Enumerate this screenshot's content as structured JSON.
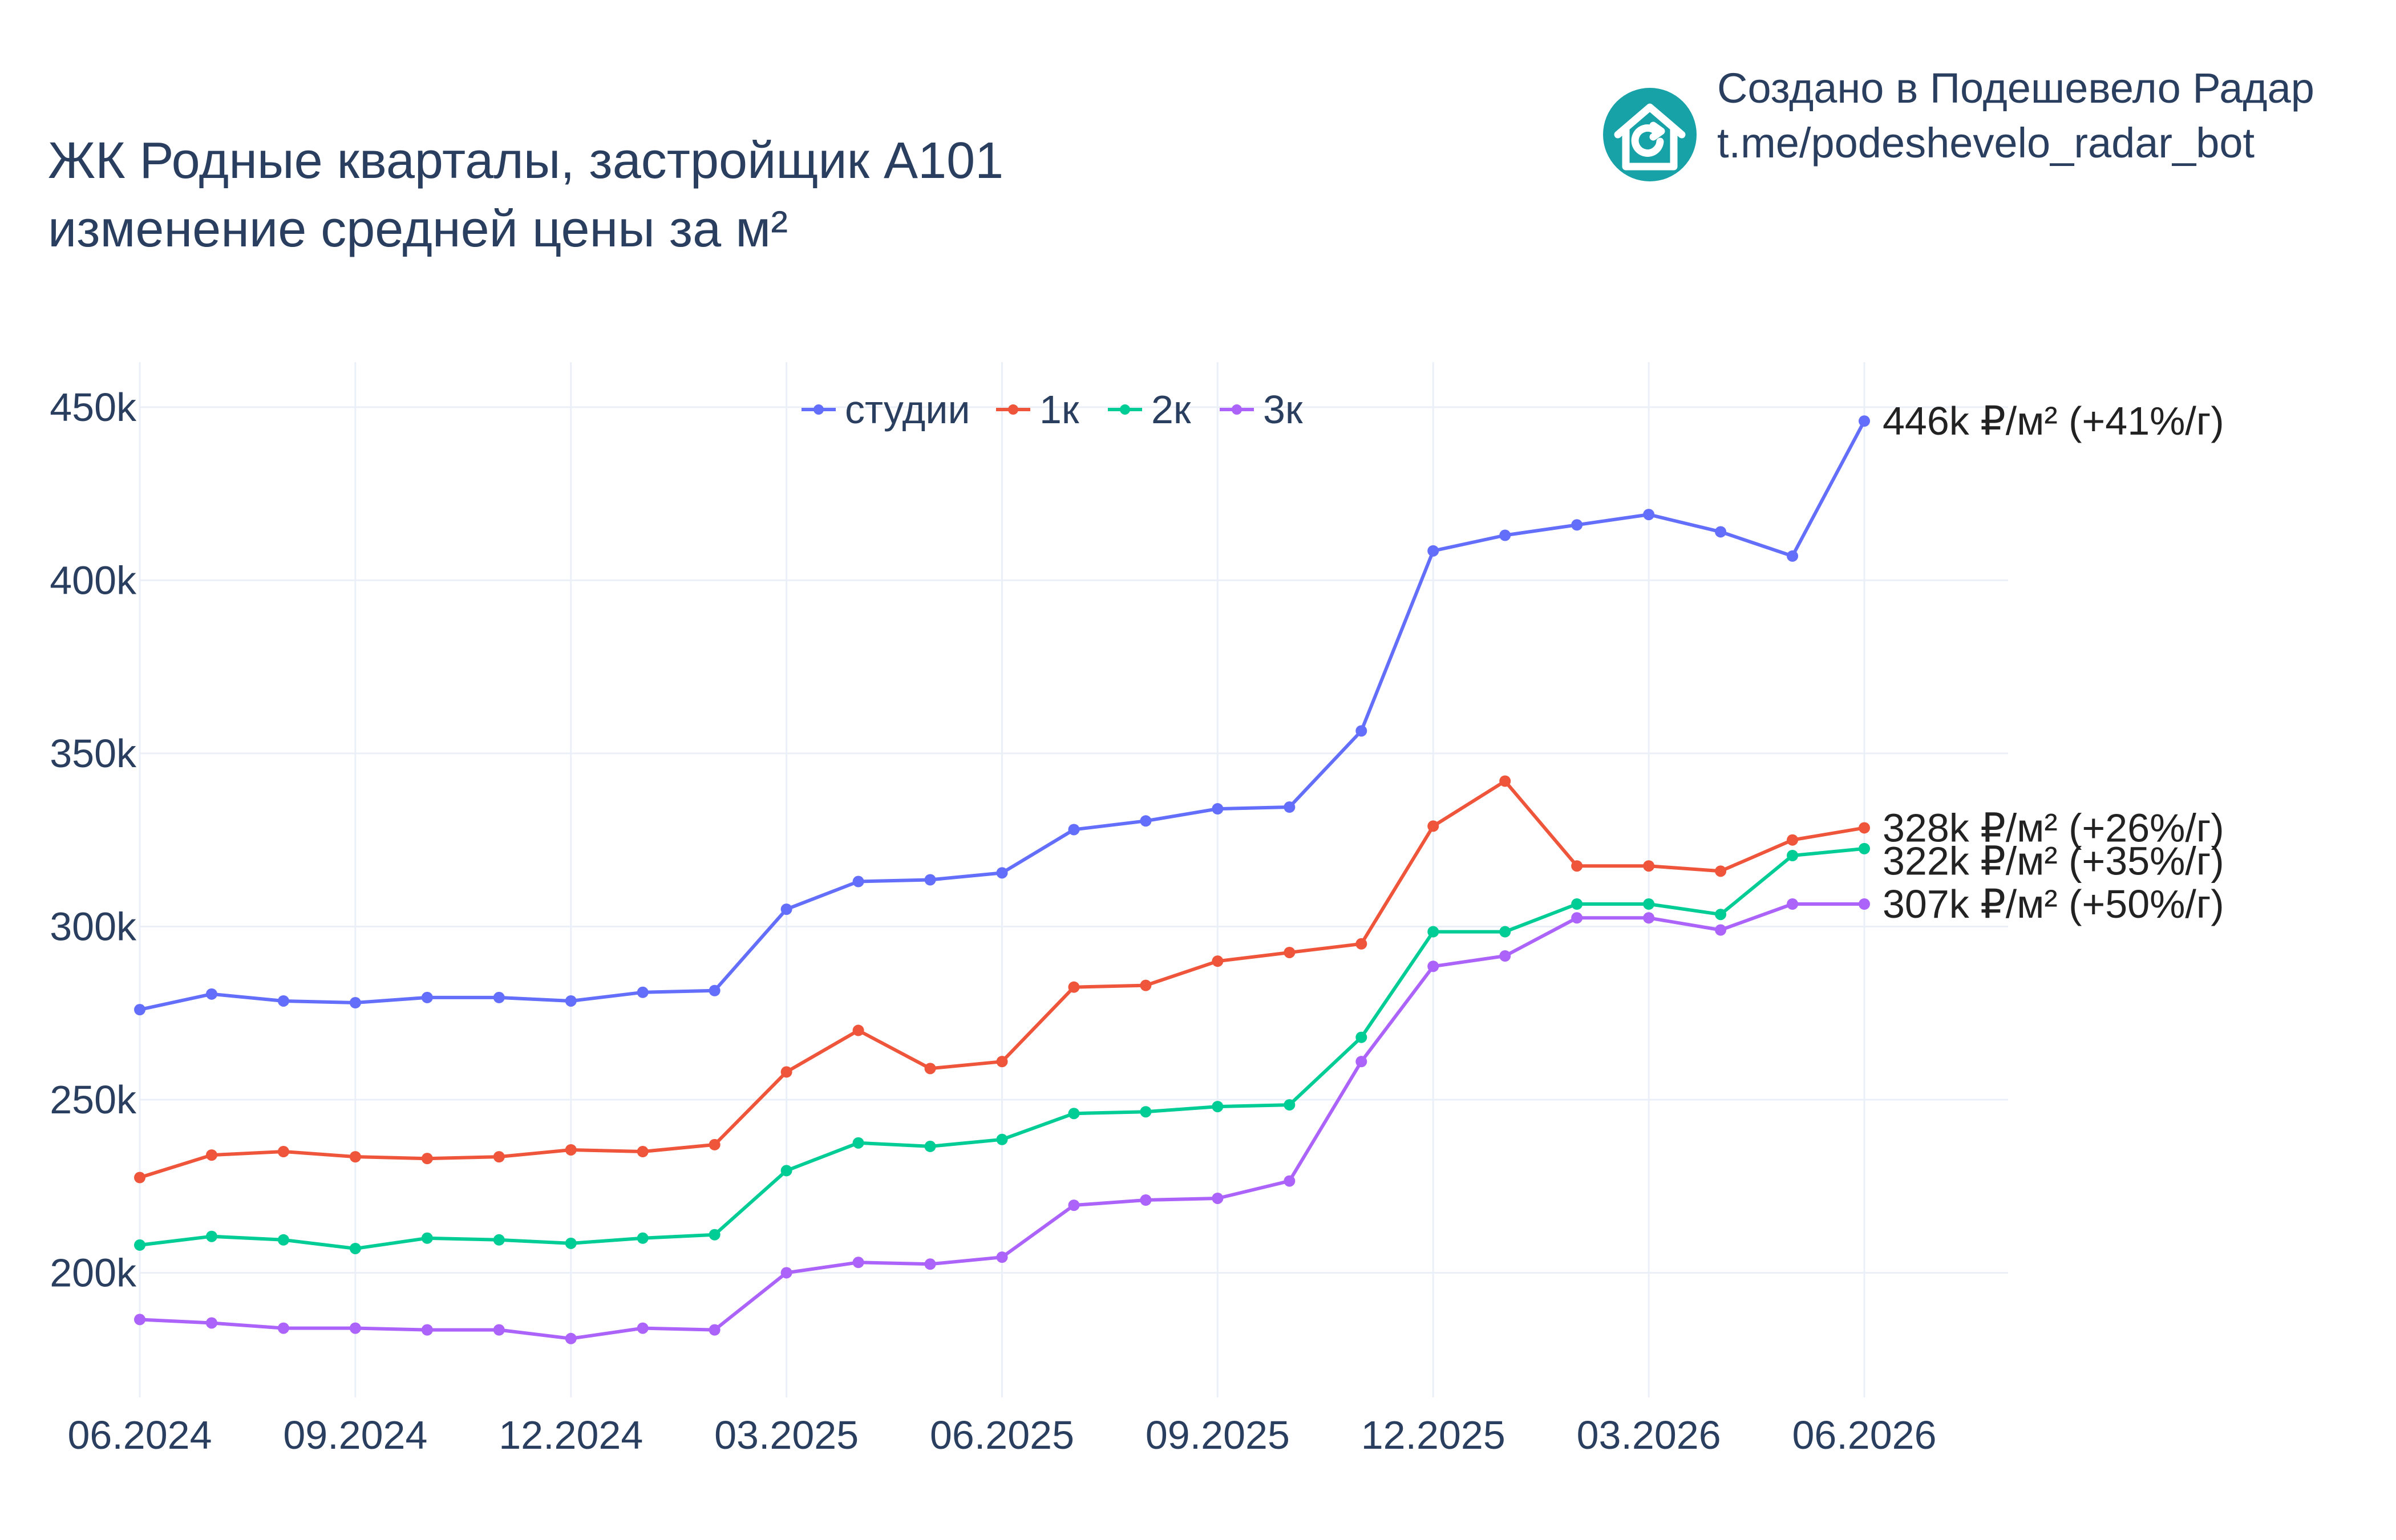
{
  "chart_data": {
    "type": "line",
    "title_lines": [
      "ЖК Родные кварталы, застройщик А101",
      "изменение средней цены за м²"
    ],
    "x": [
      "06.2024",
      "07.2024",
      "08.2024",
      "09.2024",
      "10.2024",
      "11.2024",
      "12.2024",
      "01.2025",
      "02.2025",
      "03.2025",
      "04.2025",
      "05.2025",
      "06.2025",
      "07.2025",
      "08.2025",
      "09.2025",
      "10.2025",
      "11.2025",
      "12.2025",
      "01.2026",
      "02.2026",
      "03.2026",
      "04.2026",
      "05.2026",
      "06.2026"
    ],
    "x_tick_labels": [
      "06.2024",
      "09.2024",
      "12.2024",
      "03.2025",
      "06.2025",
      "09.2025",
      "12.2025",
      "03.2026",
      "06.2026"
    ],
    "y_tick_labels": [
      "200k",
      "250k",
      "300k",
      "350k",
      "400k",
      "450k"
    ],
    "y_ticks": [
      200000,
      250000,
      300000,
      350000,
      400000,
      450000
    ],
    "ylim": [
      164000,
      463000
    ],
    "grid": true,
    "legend_position": "top-center",
    "series": [
      {
        "name": "студии",
        "color": "#636efa",
        "values": [
          276000,
          280500,
          278500,
          278000,
          279500,
          279500,
          278500,
          281000,
          281500,
          305000,
          313000,
          313500,
          315500,
          328000,
          330500,
          334000,
          334500,
          356500,
          408500,
          413000,
          416000,
          419000,
          414000,
          407000,
          446000
        ],
        "end_label": "446k ₽/м² (+41%/г)"
      },
      {
        "name": "1к",
        "color": "#ef553b",
        "values": [
          227500,
          234000,
          235000,
          233500,
          233000,
          233500,
          235500,
          235000,
          237000,
          258000,
          270000,
          259000,
          261000,
          282500,
          283000,
          290000,
          292500,
          295000,
          329000,
          342000,
          317500,
          317500,
          316000,
          325000,
          328500
        ],
        "end_label": "328k ₽/м² (+26%/г)"
      },
      {
        "name": "2к",
        "color": "#00cc96",
        "values": [
          208000,
          210500,
          209500,
          207000,
          210000,
          209500,
          208500,
          210000,
          211000,
          229500,
          237500,
          236500,
          238500,
          246000,
          246500,
          248000,
          248500,
          268000,
          298500,
          298500,
          306500,
          306500,
          303500,
          320500,
          322500
        ],
        "end_label": "322k ₽/м² (+35%/г)"
      },
      {
        "name": "3к",
        "color": "#ab63fa",
        "values": [
          186500,
          185500,
          184000,
          184000,
          183500,
          183500,
          181000,
          184000,
          183500,
          200000,
          203000,
          202500,
          204500,
          219500,
          221000,
          221500,
          226500,
          261000,
          288500,
          291500,
          302500,
          302500,
          299000,
          306500,
          306500
        ],
        "end_label": "307k ₽/м² (+50%/г)"
      }
    ]
  },
  "branding": {
    "line1": "Создано в Подешевело Радар",
    "line2": "t.me/podeshevelo_radar_bot",
    "logo_icon": "house-refresh-icon",
    "logo_color": "#17a2a8"
  }
}
